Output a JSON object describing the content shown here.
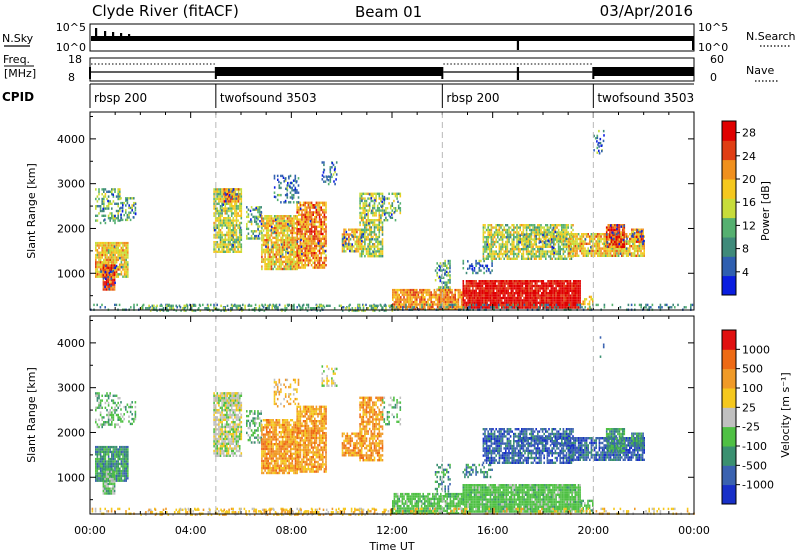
{
  "header": {
    "station": "Clyde River (fitACF)",
    "beam": "Beam 01",
    "date": "03/Apr/2016"
  },
  "strips": {
    "nsky_label": "N.Sky",
    "nsearch_label": "N.Search",
    "nsky_ticks": [
      "10^5",
      "10^0"
    ],
    "nsearch_ticks": [
      "10^5",
      "10^0"
    ],
    "freq_label_line1": "Freq.",
    "freq_label_line2": "[MHz]",
    "freq_ticks": [
      "18",
      "8"
    ],
    "nave_label": "Nave",
    "nave_ticks": [
      "60",
      "0"
    ],
    "cpid_label": "CPID"
  },
  "cpid_segments": [
    {
      "label": "rbsp 200",
      "start_h": 0,
      "end_h": 5
    },
    {
      "label": "twofsound 3503",
      "start_h": 5,
      "end_h": 14
    },
    {
      "label": "rbsp 200",
      "start_h": 14,
      "end_h": 20
    },
    {
      "label": "twofsound 3503",
      "start_h": 20,
      "end_h": 24
    }
  ],
  "chart_data": [
    {
      "type": "heatmap",
      "name": "power",
      "xlabel": "",
      "ylabel": "Slant Range [km]",
      "x_ticks": [
        "00:00",
        "04:00",
        "08:00",
        "12:00",
        "16:00",
        "20:00",
        "00:00"
      ],
      "y_ticks": [
        "1000",
        "2000",
        "3000",
        "4000"
      ],
      "xlim_hours": [
        0,
        24
      ],
      "ylim_km": [
        180,
        4600
      ],
      "colorbar_label": "Power [dB]",
      "colorbar_ticks": [
        "4",
        "8",
        "12",
        "16",
        "20",
        "24",
        "28"
      ],
      "colorbar_range": [
        0,
        30
      ],
      "colors": [
        "#0a1ee0",
        "#2f5fb0",
        "#3f8a7a",
        "#55b070",
        "#c7dc3a",
        "#f5c81e",
        "#f0901e",
        "#e03e14",
        "#e00000"
      ]
    },
    {
      "type": "heatmap",
      "name": "velocity",
      "xlabel": "Time UT",
      "ylabel": "Slant Range [km]",
      "x_ticks": [
        "00:00",
        "04:00",
        "08:00",
        "12:00",
        "16:00",
        "20:00",
        "00:00"
      ],
      "y_ticks": [
        "1000",
        "2000",
        "3000",
        "4000"
      ],
      "xlim_hours": [
        0,
        24
      ],
      "ylim_km": [
        180,
        4600
      ],
      "colorbar_label": "Velocity [m s⁻¹]",
      "colorbar_ticks": [
        "1000",
        "500",
        "100",
        "25",
        "-25",
        "-100",
        "-500",
        "-1000"
      ],
      "colors": [
        "#1830c8",
        "#3a62b0",
        "#3a9070",
        "#4fc044",
        "#c0c0c0",
        "#f5c81e",
        "#f09a28",
        "#ee6a14",
        "#e01010"
      ]
    }
  ]
}
